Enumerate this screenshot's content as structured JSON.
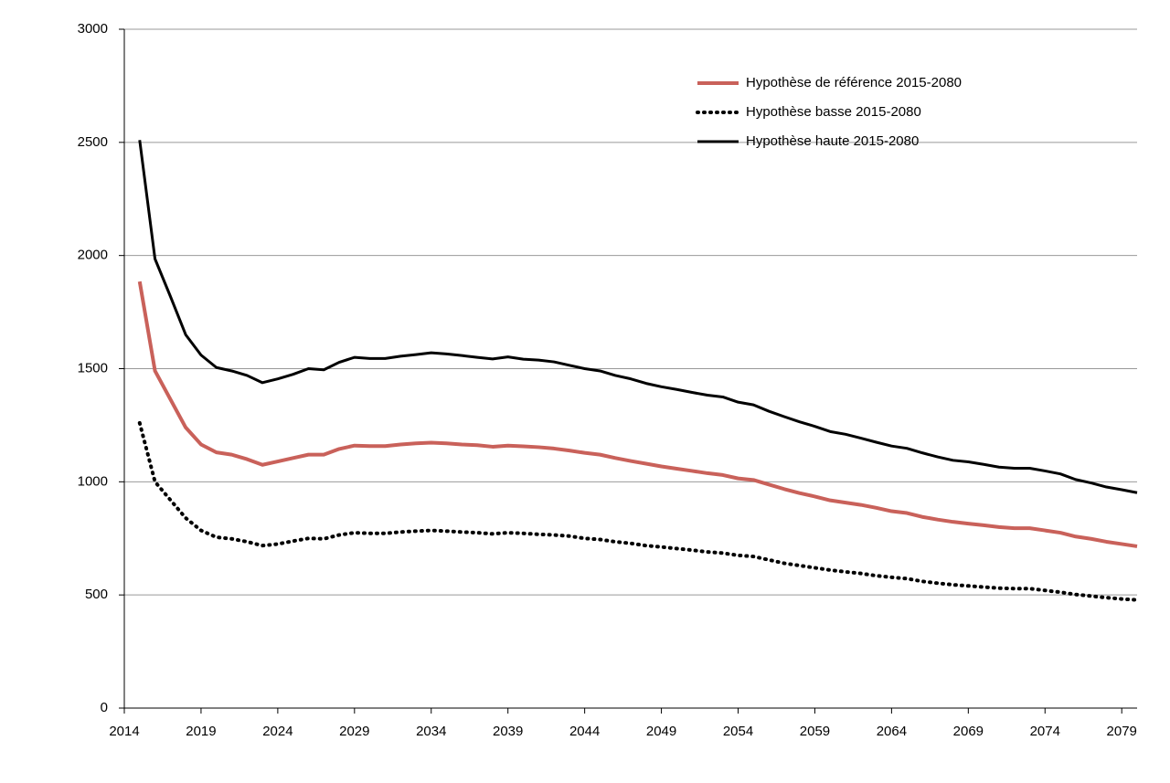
{
  "chart_data": {
    "type": "line",
    "x": [
      2015,
      2016,
      2017,
      2018,
      2019,
      2020,
      2021,
      2022,
      2023,
      2024,
      2025,
      2026,
      2027,
      2028,
      2029,
      2030,
      2031,
      2032,
      2033,
      2034,
      2035,
      2036,
      2037,
      2038,
      2039,
      2040,
      2041,
      2042,
      2043,
      2044,
      2045,
      2046,
      2047,
      2048,
      2049,
      2050,
      2051,
      2052,
      2053,
      2054,
      2055,
      2056,
      2057,
      2058,
      2059,
      2060,
      2061,
      2062,
      2063,
      2064,
      2065,
      2066,
      2067,
      2068,
      2069,
      2070,
      2071,
      2072,
      2073,
      2074,
      2075,
      2076,
      2077,
      2078,
      2079,
      2080
    ],
    "series": [
      {
        "name": "Hypothèse de référence 2015-2080",
        "color": "#c9615a",
        "width": 4,
        "dash": "solid",
        "values": [
          1885,
          1490,
          1365,
          1240,
          1165,
          1130,
          1120,
          1100,
          1075,
          1090,
          1105,
          1120,
          1120,
          1145,
          1160,
          1158,
          1158,
          1165,
          1170,
          1173,
          1170,
          1165,
          1162,
          1155,
          1160,
          1157,
          1153,
          1147,
          1138,
          1128,
          1120,
          1105,
          1092,
          1080,
          1068,
          1058,
          1048,
          1038,
          1030,
          1015,
          1008,
          988,
          968,
          950,
          935,
          918,
          908,
          898,
          885,
          870,
          862,
          845,
          833,
          823,
          815,
          808,
          800,
          795,
          795,
          785,
          775,
          758,
          748,
          735,
          725,
          715
        ]
      },
      {
        "name": "Hypothèse basse 2015-2080",
        "color": "#000000",
        "width": 4,
        "dash": "dotted",
        "values": [
          1260,
          1000,
          920,
          840,
          785,
          755,
          748,
          735,
          718,
          725,
          738,
          750,
          748,
          765,
          775,
          772,
          772,
          778,
          782,
          785,
          782,
          778,
          775,
          770,
          775,
          772,
          768,
          765,
          760,
          750,
          745,
          735,
          728,
          718,
          712,
          705,
          698,
          690,
          685,
          675,
          670,
          655,
          640,
          630,
          620,
          610,
          602,
          595,
          585,
          578,
          572,
          560,
          552,
          545,
          540,
          535,
          530,
          528,
          528,
          520,
          512,
          502,
          495,
          488,
          482,
          478
        ]
      },
      {
        "name": "Hypothèse haute 2015-2080",
        "color": "#000000",
        "width": 3,
        "dash": "solid",
        "values": [
          2510,
          1985,
          1820,
          1650,
          1560,
          1505,
          1490,
          1470,
          1438,
          1455,
          1475,
          1500,
          1495,
          1528,
          1550,
          1545,
          1545,
          1555,
          1562,
          1570,
          1565,
          1558,
          1550,
          1543,
          1552,
          1542,
          1538,
          1530,
          1515,
          1500,
          1490,
          1470,
          1455,
          1435,
          1420,
          1408,
          1395,
          1383,
          1375,
          1352,
          1340,
          1312,
          1288,
          1265,
          1245,
          1222,
          1210,
          1193,
          1175,
          1158,
          1148,
          1128,
          1110,
          1095,
          1088,
          1077,
          1065,
          1060,
          1060,
          1048,
          1035,
          1010,
          995,
          977,
          965,
          952
        ]
      }
    ],
    "xlim": [
      2014,
      2080
    ],
    "xticks": [
      2014,
      2019,
      2024,
      2029,
      2034,
      2039,
      2044,
      2049,
      2054,
      2059,
      2064,
      2069,
      2074,
      2079
    ],
    "ylim": [
      0,
      3000
    ],
    "yticks": [
      0,
      500,
      1000,
      1500,
      2000,
      2500,
      3000
    ],
    "grid": true,
    "legend": "top-right"
  }
}
